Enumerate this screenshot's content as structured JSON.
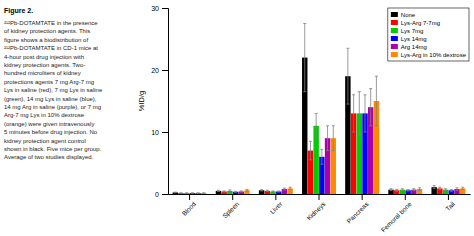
{
  "chart_data": {
    "type": "bar",
    "title": "Figure 2.",
    "annotations": [
      "²¹²Pb-DOTAMTATE in the presence",
      "of kidney protection agents. This",
      "figure shows a biodistribution of",
      "²¹²Pb-DOTAMTATE in CD-1 mice at",
      "4-hour post drug injection with",
      "kidney protection agents. Two-",
      "hundred microliters of kidney",
      "protections agents 7 mg Arg-7 mg",
      "Lys in saline (red), 7 mg Lys in saline",
      "(green), 14 mg Lys in saline (blue),",
      "14 mg Arg in saline (purple), or 7 mg",
      "Arg-7 mg Lys in 10% dextrose",
      "(orange) were given intravenously",
      "5 minutes before drug injection. No",
      "kidney protection agent control",
      "shown in black. Five mice per group.",
      "Average of two studies displayed."
    ],
    "categories": [
      "Blood",
      "Spleen",
      "Liver",
      "Kidneys",
      "Pancreas",
      "Femoral bone",
      "Tail"
    ],
    "series": [
      {
        "name": "None",
        "color": "#000000",
        "values": [
          0.25,
          0.5,
          0.6,
          22.0,
          19.0,
          0.7,
          1.1
        ],
        "errors": [
          0.05,
          0.1,
          0.1,
          5.5,
          4.5,
          0.15,
          0.25
        ]
      },
      {
        "name": "Lys-Arg 7-7mg",
        "color": "#FF0000",
        "values": [
          0.15,
          0.4,
          0.5,
          7.0,
          13.0,
          0.6,
          0.9
        ],
        "errors": [
          0.05,
          0.1,
          0.1,
          1.5,
          3.0,
          0.15,
          0.2
        ]
      },
      {
        "name": "Lys 7mg",
        "color": "#00CC00",
        "values": [
          0.15,
          0.5,
          0.4,
          11.0,
          13.0,
          0.7,
          0.7
        ],
        "errors": [
          0.04,
          0.15,
          0.08,
          2.0,
          3.5,
          0.15,
          0.15
        ]
      },
      {
        "name": "Lys 14mg",
        "color": "#0000FF",
        "values": [
          0.15,
          0.35,
          0.4,
          6.0,
          13.0,
          0.6,
          0.6
        ],
        "errors": [
          0.04,
          0.08,
          0.08,
          1.2,
          3.0,
          0.12,
          0.15
        ]
      },
      {
        "name": "Arg 14mg",
        "color": "#AA00AA",
        "values": [
          0.15,
          0.4,
          0.8,
          9.0,
          14.0,
          0.7,
          0.8
        ],
        "errors": [
          0.04,
          0.1,
          0.15,
          2.0,
          3.0,
          0.15,
          0.2
        ]
      },
      {
        "name": "Lys-Arg in 10% dextrose",
        "color": "#FF8800",
        "values": [
          0.15,
          0.6,
          0.9,
          9.0,
          15.0,
          0.8,
          0.9
        ],
        "errors": [
          0.04,
          0.15,
          0.2,
          2.0,
          4.0,
          0.2,
          0.2
        ]
      }
    ],
    "ylabel": "%ID/g",
    "ylim": [
      0,
      30
    ],
    "yticks": [
      0,
      10,
      20,
      30
    ],
    "grid": false,
    "legend": "upper right"
  }
}
